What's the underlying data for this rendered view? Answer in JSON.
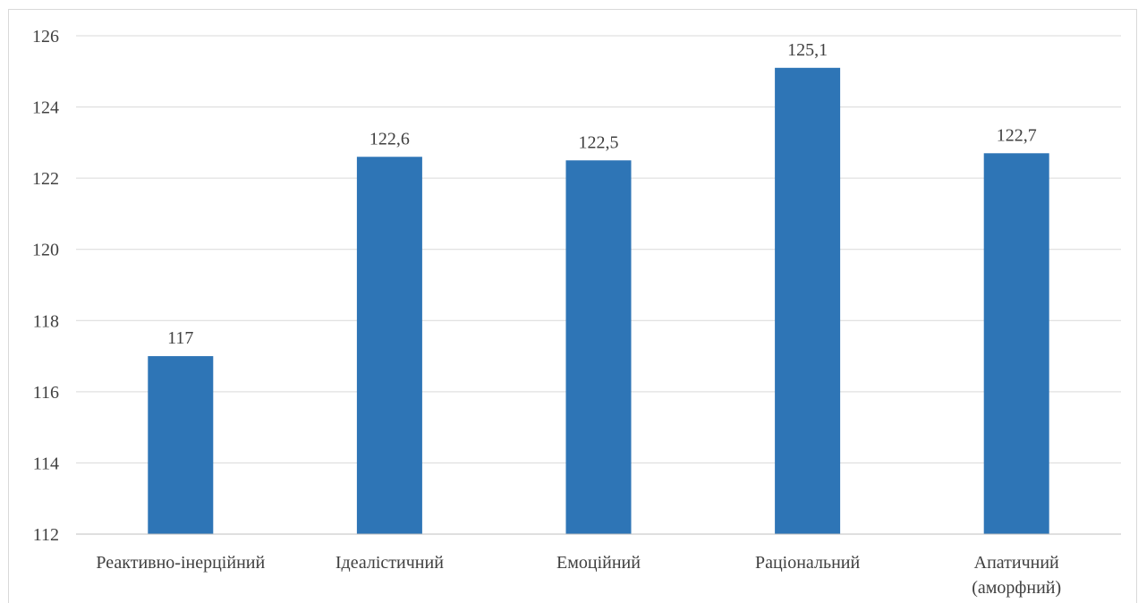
{
  "chart_data": {
    "type": "bar",
    "categories": [
      [
        "Реактивно-інерційний"
      ],
      [
        "Ідеалістичний"
      ],
      [
        "Емоційний"
      ],
      [
        "Раціональний"
      ],
      [
        "Апатичний",
        "(аморфний)"
      ]
    ],
    "values": [
      117,
      122.6,
      122.5,
      125.1,
      122.7
    ],
    "data_labels": [
      "117",
      "122,6",
      "122,5",
      "125,1",
      "122,7"
    ],
    "ylim": [
      112,
      126
    ],
    "yticks": [
      112,
      114,
      116,
      118,
      120,
      122,
      124,
      126
    ],
    "grid": true,
    "legend": "none",
    "title": "",
    "xlabel": "",
    "ylabel": "",
    "bar_color": "#2e75b6"
  }
}
